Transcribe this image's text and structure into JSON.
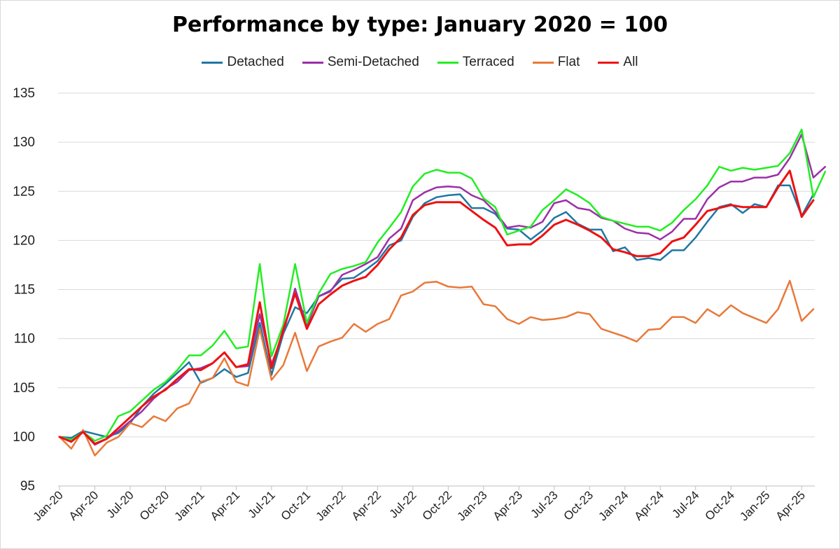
{
  "chart_data": {
    "type": "line",
    "title": "Performance by type: January 2020 = 100",
    "xlabel": "",
    "ylabel": "",
    "ylim": [
      95,
      135
    ],
    "yticks": [
      95,
      100,
      105,
      110,
      115,
      120,
      125,
      130,
      135
    ],
    "grid": "y",
    "legend": "top-center",
    "x_tick_labels": [
      "Jan-20",
      "Apr-20",
      "Jul-20",
      "Oct-20",
      "Jan-21",
      "Apr-21",
      "Jul-21",
      "Oct-21",
      "Jan-22",
      "Apr-22",
      "Jul-22",
      "Oct-22",
      "Jan-23",
      "Apr-23",
      "Jul-23",
      "Oct-23",
      "Jan-24",
      "Apr-24",
      "Jul-24",
      "Oct-24",
      "Jan-25",
      "Apr-25"
    ],
    "series": [
      {
        "name": "Detached",
        "color": "#1f77a4",
        "values": [
          100,
          99.9,
          100.6,
          100.3,
          100.0,
          100.4,
          101.4,
          103.1,
          104.4,
          105.4,
          106.5,
          107.6,
          105.5,
          106.0,
          106.9,
          106.1,
          106.5,
          111.6,
          106.3,
          110.5,
          113.2,
          112.6,
          114.3,
          114.9,
          116.1,
          116.2,
          117.0,
          117.9,
          119.5,
          120.0,
          122.4,
          123.8,
          124.4,
          124.6,
          124.7,
          123.3,
          123.3,
          122.7,
          121.2,
          121.1,
          120.1,
          121.0,
          122.3,
          122.9,
          121.7,
          121.1,
          121.1,
          118.9,
          119.3,
          118.0,
          118.2,
          118.0,
          119.0,
          119.0,
          120.3,
          121.9,
          123.4,
          123.7,
          122.8,
          123.7,
          123.4,
          125.6,
          125.6,
          122.5,
          124.7
        ]
      },
      {
        "name": "Semi-Detached",
        "color": "#9b30a6",
        "values": [
          100,
          99.6,
          100.5,
          99.2,
          99.8,
          100.6,
          101.6,
          102.6,
          103.9,
          104.9,
          105.6,
          106.8,
          107.0,
          107.5,
          108.6,
          107.1,
          107.2,
          112.5,
          107.4,
          110.6,
          115.1,
          111.3,
          114.3,
          114.8,
          116.5,
          117.0,
          117.6,
          118.3,
          120.2,
          121.2,
          124.1,
          124.9,
          125.4,
          125.5,
          125.4,
          124.6,
          124.1,
          122.9,
          121.3,
          121.5,
          121.3,
          121.9,
          123.8,
          124.1,
          123.3,
          123.1,
          122.3,
          122.0,
          121.2,
          120.8,
          120.7,
          120.1,
          120.9,
          122.2,
          122.2,
          124.2,
          125.4,
          126.0,
          126.0,
          126.4,
          126.4,
          126.7,
          128.4,
          130.8,
          126.4,
          127.5
        ]
      },
      {
        "name": "Terraced",
        "color": "#22ee22",
        "values": [
          100,
          99.7,
          100.5,
          99.6,
          100.1,
          102.1,
          102.6,
          103.7,
          104.8,
          105.6,
          106.8,
          108.3,
          108.3,
          109.3,
          110.8,
          109.0,
          109.2,
          117.6,
          108.2,
          111.4,
          117.6,
          111.6,
          114.6,
          116.6,
          117.1,
          117.4,
          117.8,
          119.8,
          121.3,
          122.9,
          125.5,
          126.8,
          127.2,
          126.9,
          126.9,
          126.3,
          124.3,
          123.4,
          120.6,
          121.0,
          121.4,
          123.1,
          124.1,
          125.2,
          124.6,
          123.8,
          122.4,
          122.0,
          121.7,
          121.4,
          121.4,
          121.0,
          121.8,
          123.1,
          124.2,
          125.6,
          127.5,
          127.1,
          127.4,
          127.2,
          127.4,
          127.6,
          128.9,
          131.3,
          124.4,
          127.0
        ]
      },
      {
        "name": "Flat",
        "color": "#e8793a",
        "values": [
          100,
          98.8,
          100.7,
          98.1,
          99.4,
          100.0,
          101.4,
          101.0,
          102.1,
          101.6,
          102.9,
          103.4,
          105.6,
          106.0,
          108.0,
          105.6,
          105.2,
          111.0,
          105.8,
          107.3,
          110.6,
          106.7,
          109.2,
          109.7,
          110.1,
          111.5,
          110.7,
          111.5,
          112.0,
          114.4,
          114.8,
          115.7,
          115.8,
          115.3,
          115.2,
          115.3,
          113.5,
          113.3,
          112.0,
          111.5,
          112.2,
          111.9,
          112.0,
          112.2,
          112.7,
          112.5,
          111.0,
          110.6,
          110.2,
          109.7,
          110.9,
          111.0,
          112.2,
          112.2,
          111.6,
          113.0,
          112.3,
          113.4,
          112.6,
          112.1,
          111.6,
          113.0,
          115.9,
          111.8,
          113.0
        ]
      },
      {
        "name": "All",
        "color": "#ee1111",
        "values": [
          100,
          99.5,
          100.5,
          99.3,
          99.8,
          100.9,
          102.0,
          103.1,
          104.1,
          104.8,
          105.9,
          106.9,
          106.8,
          107.5,
          108.6,
          107.1,
          107.4,
          113.7,
          107.0,
          110.9,
          114.6,
          111.0,
          113.5,
          114.5,
          115.4,
          115.9,
          116.3,
          117.5,
          119.1,
          120.3,
          122.6,
          123.6,
          123.9,
          123.9,
          123.9,
          123.0,
          122.1,
          121.3,
          119.5,
          119.6,
          119.6,
          120.5,
          121.6,
          122.1,
          121.6,
          121.0,
          120.3,
          119.1,
          118.8,
          118.4,
          118.4,
          118.7,
          119.9,
          120.3,
          121.6,
          123.0,
          123.3,
          123.6,
          123.4,
          123.4,
          123.4,
          125.4,
          127.1,
          122.4,
          124.1
        ]
      }
    ]
  }
}
